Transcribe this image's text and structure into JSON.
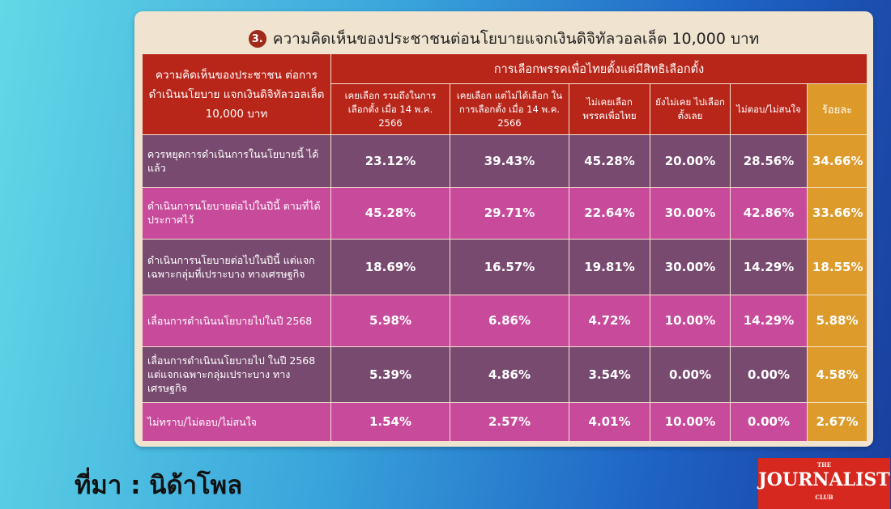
{
  "title": {
    "number": "3.",
    "text": "ความคิดเห็นของประชาชนต่อนโยบายแจกเงินดิจิทัลวอลเล็ต 10,000 บาท"
  },
  "table": {
    "corner_header": "ความคิดเห็นของประชาชน ต่อการดำเนินนโยบาย แจกเงินดิจิทัลวอลเล็ต 10,000 บาท",
    "group_header": "การเลือกพรรคเพื่อไทยตั้งแต่มีสิทธิเลือกตั้ง",
    "columns": [
      "เคยเลือก รวมถึงในการเลือกตั้ง เมื่อ 14 พ.ค. 2566",
      "เคยเลือก แต่ไม่ได้เลือก ในการเลือกตั้ง เมื่อ 14 พ.ค. 2566",
      "ไม่เคยเลือก พรรคเพื่อไทย",
      "ยังไม่เคย ไปเลือกตั้งเลย",
      "ไม่ตอบ/ไม่สนใจ"
    ],
    "percent_header": "ร้อยละ",
    "rows": [
      {
        "label": "ควรหยุดการดำเนินการในนโยบายนี้ ได้แล้ว",
        "values": [
          "23.12%",
          "39.43%",
          "45.28%",
          "20.00%",
          "28.56%"
        ],
        "percent": "34.66%"
      },
      {
        "label": "ดำเนินการนโยบายต่อไปในปีนี้ ตามที่ได้ประกาศไว้",
        "values": [
          "45.28%",
          "29.71%",
          "22.64%",
          "30.00%",
          "42.86%"
        ],
        "percent": "33.66%"
      },
      {
        "label": "ดำเนินการนโยบายต่อไปในปีนี้ แต่แจกเฉพาะกลุ่มที่เปราะบาง ทางเศรษฐกิจ",
        "values": [
          "18.69%",
          "16.57%",
          "19.81%",
          "30.00%",
          "14.29%"
        ],
        "percent": "18.55%"
      },
      {
        "label": "เลื่อนการดำเนินนโยบายไปในปี 2568",
        "values": [
          "5.98%",
          "6.86%",
          "4.72%",
          "10.00%",
          "14.29%"
        ],
        "percent": "5.88%"
      },
      {
        "label": "เลื่อนการดำเนินนโยบายไป ในปี 2568 แต่แจกเฉพาะกลุ่มเปราะบาง ทางเศรษฐกิจ",
        "values": [
          "5.39%",
          "4.86%",
          "3.54%",
          "0.00%",
          "0.00%"
        ],
        "percent": "4.58%"
      },
      {
        "label": "ไม่ทราบ/ไม่ตอบ/ไม่สนใจ",
        "values": [
          "1.54%",
          "2.57%",
          "4.01%",
          "10.00%",
          "0.00%"
        ],
        "percent": "2.67%"
      }
    ]
  },
  "source": "ที่มา : นิด้าโพล",
  "logo": {
    "top": "THE",
    "main": "JOURNALIST",
    "bottom": "CLUB"
  },
  "colors": {
    "header_red": "#b8261a",
    "row_dark_purple": "#784a6f",
    "row_pink": "#c84a9b",
    "percent_column_orange": "#dc9b2b",
    "logo_red": "#d7281f"
  },
  "chart_data": {
    "type": "table",
    "title": "ความคิดเห็นของประชาชนต่อนโยบายแจกเงินดิจิทัลวอลเล็ต 10,000 บาท",
    "columns": [
      "เคยเลือก รวมถึงในการเลือกตั้ง เมื่อ 14 พ.ค. 2566",
      "เคยเลือก แต่ไม่ได้เลือก ในการเลือกตั้ง เมื่อ 14 พ.ค. 2566",
      "ไม่เคยเลือก พรรคเพื่อไทย",
      "ยังไม่เคย ไปเลือกตั้งเลย",
      "ไม่ตอบ/ไม่สนใจ",
      "ร้อยละ"
    ],
    "rows": [
      {
        "label": "ควรหยุดการดำเนินการในนโยบายนี้ ได้แล้ว",
        "values": [
          23.12,
          39.43,
          45.28,
          20.0,
          28.56,
          34.66
        ]
      },
      {
        "label": "ดำเนินการนโยบายต่อไปในปีนี้ ตามที่ได้ประกาศไว้",
        "values": [
          45.28,
          29.71,
          22.64,
          30.0,
          42.86,
          33.66
        ]
      },
      {
        "label": "ดำเนินการนโยบายต่อไปในปีนี้ แต่แจกเฉพาะกลุ่มที่เปราะบาง ทางเศรษฐกิจ",
        "values": [
          18.69,
          16.57,
          19.81,
          30.0,
          14.29,
          18.55
        ]
      },
      {
        "label": "เลื่อนการดำเนินนโยบายไปในปี 2568",
        "values": [
          5.98,
          6.86,
          4.72,
          10.0,
          14.29,
          5.88
        ]
      },
      {
        "label": "เลื่อนการดำเนินนโยบายไป ในปี 2568 แต่แจกเฉพาะกลุ่มเปราะบาง ทางเศรษฐกิจ",
        "values": [
          5.39,
          4.86,
          3.54,
          0.0,
          0.0,
          4.58
        ]
      },
      {
        "label": "ไม่ทราบ/ไม่ตอบ/ไม่สนใจ",
        "values": [
          1.54,
          2.57,
          4.01,
          10.0,
          0.0,
          2.67
        ]
      }
    ]
  }
}
